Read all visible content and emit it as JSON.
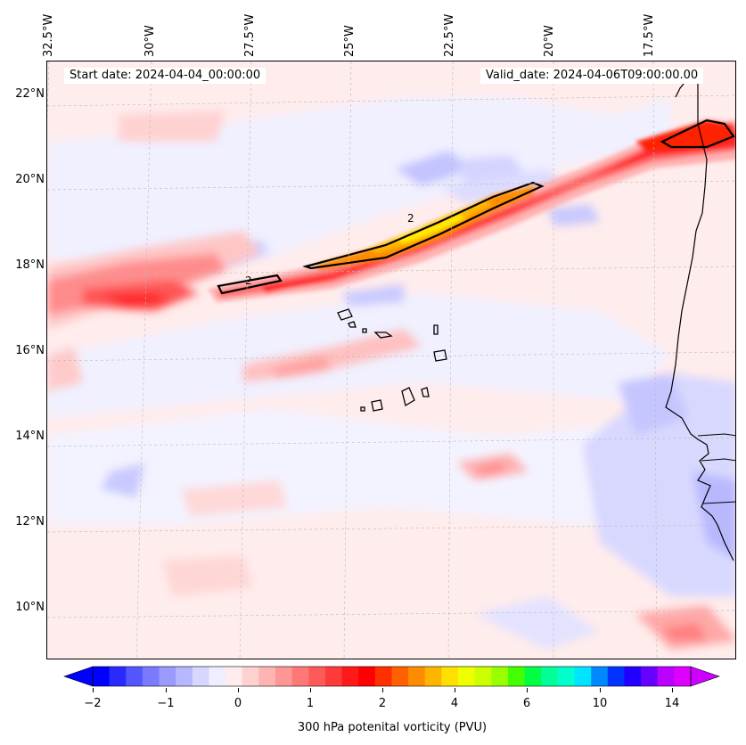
{
  "map": {
    "start_date": "Start date: 2024-04-04_00:00:00",
    "valid_date": "Valid_date: 2024-04-06T09:00:00.00",
    "lon_labels": [
      "32.5°W",
      "30°W",
      "27.5°W",
      "25°W",
      "22.5°W",
      "20°W",
      "17.5°W"
    ],
    "lat_labels": [
      "22°N",
      "20°N",
      "18°N",
      "16°N",
      "14°N",
      "12°N",
      "10°N"
    ],
    "contour_labels": [
      "2",
      "2"
    ],
    "extent": {
      "lon_min": -32.5,
      "lon_max": -15.5,
      "lat_min": 9,
      "lat_max": 22.8
    },
    "colors": {
      "neg_strong": "#9ea0ff",
      "neg_weak": "#f0f0ff",
      "pos_weak": "#ffe6e6",
      "pos_mid": "#ffaaaa",
      "pos_strong": "#ff2020",
      "orange": "#ff8c00",
      "yellow": "#ffee00",
      "coast": "#000000"
    }
  },
  "colorbar": {
    "label": "300 hPa potenital vorticity (PVU)",
    "tick_labels": [
      "−2",
      "−1",
      "0",
      "1",
      "2",
      "4",
      "6",
      "10",
      "14"
    ],
    "colors": [
      "#0000ff",
      "#2a2aff",
      "#5555ff",
      "#7a7aff",
      "#9a9aff",
      "#b7b7ff",
      "#d6d6ff",
      "#eeeeff",
      "#ffeded",
      "#ffd2d2",
      "#ffb4b4",
      "#ff9696",
      "#ff7878",
      "#ff5a5a",
      "#ff3a3a",
      "#ff1a1a",
      "#ff0000",
      "#ff3000",
      "#ff6000",
      "#ff8c00",
      "#ffb400",
      "#ffe000",
      "#eeff00",
      "#ccff00",
      "#99ff00",
      "#44ff00",
      "#00ff44",
      "#00ff99",
      "#00ffcc",
      "#00e5ff",
      "#0088ff",
      "#0033ff",
      "#2200ff",
      "#6600ff",
      "#bb00ff",
      "#dd00ff"
    ]
  }
}
